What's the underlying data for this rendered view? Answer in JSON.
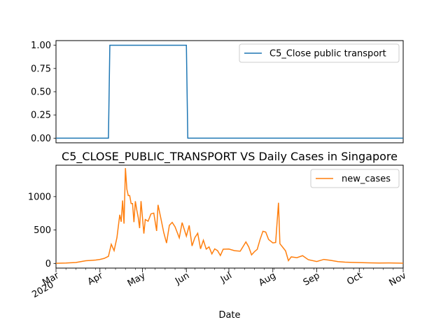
{
  "chart_data": [
    {
      "type": "line",
      "title": "",
      "xlabel": "",
      "ylabel": "",
      "ylim": [
        -0.05,
        1.05
      ],
      "yticks": [
        "0.00",
        "0.25",
        "0.50",
        "0.75",
        "1.00"
      ],
      "legend_position": "upper right",
      "series": [
        {
          "name": "C5_Close public transport",
          "color": "#1f77b4",
          "points": [
            [
              "2020-03-01",
              0
            ],
            [
              "2020-04-07",
              0
            ],
            [
              "2020-04-08",
              1
            ],
            [
              "2020-06-01",
              1
            ],
            [
              "2020-06-02",
              0
            ],
            [
              "2020-11-01",
              0
            ]
          ]
        }
      ]
    },
    {
      "type": "line",
      "title": "C5_CLOSE_PUBLIC_TRANSPORT VS Daily Cases in Singapore",
      "xlabel": "Date",
      "ylabel": "",
      "ylim": [
        -70,
        1470
      ],
      "yticks": [
        "0",
        "500",
        "1000"
      ],
      "xticks": [
        {
          "date": "2020-03-01",
          "label": "Mar",
          "sub": "2020"
        },
        {
          "date": "2020-04-01",
          "label": "Apr",
          "sub": ""
        },
        {
          "date": "2020-05-01",
          "label": "May",
          "sub": ""
        },
        {
          "date": "2020-06-01",
          "label": "Jun",
          "sub": ""
        },
        {
          "date": "2020-07-01",
          "label": "Jul",
          "sub": ""
        },
        {
          "date": "2020-08-01",
          "label": "Aug",
          "sub": ""
        },
        {
          "date": "2020-09-01",
          "label": "Sep",
          "sub": ""
        },
        {
          "date": "2020-10-01",
          "label": "Oct",
          "sub": ""
        },
        {
          "date": "2020-11-01",
          "label": "Nov",
          "sub": ""
        }
      ],
      "legend_position": "upper right",
      "series": [
        {
          "name": "new_cases",
          "color": "#ff7f0e",
          "points": [
            [
              "2020-03-01",
              2
            ],
            [
              "2020-03-08",
              6
            ],
            [
              "2020-03-15",
              14
            ],
            [
              "2020-03-22",
              40
            ],
            [
              "2020-03-29",
              50
            ],
            [
              "2020-04-01",
              60
            ],
            [
              "2020-04-04",
              75
            ],
            [
              "2020-04-07",
              106
            ],
            [
              "2020-04-09",
              287
            ],
            [
              "2020-04-11",
              191
            ],
            [
              "2020-04-13",
              386
            ],
            [
              "2020-04-15",
              728
            ],
            [
              "2020-04-16",
              623
            ],
            [
              "2020-04-17",
              942
            ],
            [
              "2020-04-18",
              596
            ],
            [
              "2020-04-19",
              1426
            ],
            [
              "2020-04-20",
              1111
            ],
            [
              "2020-04-21",
              1016
            ],
            [
              "2020-04-22",
              1016
            ],
            [
              "2020-04-23",
              897
            ],
            [
              "2020-04-24",
              897
            ],
            [
              "2020-04-25",
              618
            ],
            [
              "2020-04-26",
              931
            ],
            [
              "2020-04-27",
              799
            ],
            [
              "2020-04-28",
              690
            ],
            [
              "2020-04-29",
              528
            ],
            [
              "2020-04-30",
              932
            ],
            [
              "2020-05-02",
              447
            ],
            [
              "2020-05-03",
              657
            ],
            [
              "2020-05-05",
              632
            ],
            [
              "2020-05-07",
              741
            ],
            [
              "2020-05-09",
              753
            ],
            [
              "2020-05-11",
              486
            ],
            [
              "2020-05-12",
              876
            ],
            [
              "2020-05-14",
              675
            ],
            [
              "2020-05-16",
              465
            ],
            [
              "2020-05-18",
              305
            ],
            [
              "2020-05-20",
              570
            ],
            [
              "2020-05-22",
              614
            ],
            [
              "2020-05-24",
              548
            ],
            [
              "2020-05-27",
              383
            ],
            [
              "2020-05-29",
              611
            ],
            [
              "2020-06-01",
              408
            ],
            [
              "2020-06-03",
              569
            ],
            [
              "2020-06-05",
              261
            ],
            [
              "2020-06-07",
              386
            ],
            [
              "2020-06-09",
              451
            ],
            [
              "2020-06-11",
              218
            ],
            [
              "2020-06-13",
              347
            ],
            [
              "2020-06-15",
              214
            ],
            [
              "2020-06-17",
              247
            ],
            [
              "2020-06-19",
              142
            ],
            [
              "2020-06-21",
              218
            ],
            [
              "2020-06-23",
              191
            ],
            [
              "2020-06-25",
              119
            ],
            [
              "2020-06-27",
              213
            ],
            [
              "2020-07-01",
              215
            ],
            [
              "2020-07-05",
              191
            ],
            [
              "2020-07-09",
              183
            ],
            [
              "2020-07-13",
              322
            ],
            [
              "2020-07-15",
              247
            ],
            [
              "2020-07-17",
              128
            ],
            [
              "2020-07-19",
              175
            ],
            [
              "2020-07-21",
              211
            ],
            [
              "2020-07-23",
              359
            ],
            [
              "2020-07-25",
              481
            ],
            [
              "2020-07-27",
              469
            ],
            [
              "2020-07-29",
              359
            ],
            [
              "2020-08-01",
              307
            ],
            [
              "2020-08-03",
              313
            ],
            [
              "2020-08-05",
              908
            ],
            [
              "2020-08-06",
              295
            ],
            [
              "2020-08-08",
              242
            ],
            [
              "2020-08-10",
              188
            ],
            [
              "2020-08-12",
              42
            ],
            [
              "2020-08-14",
              98
            ],
            [
              "2020-08-18",
              86
            ],
            [
              "2020-08-22",
              116
            ],
            [
              "2020-08-26",
              56
            ],
            [
              "2020-09-01",
              28
            ],
            [
              "2020-09-06",
              60
            ],
            [
              "2020-09-11",
              45
            ],
            [
              "2020-09-16",
              27
            ],
            [
              "2020-09-21",
              19
            ],
            [
              "2020-09-26",
              15
            ],
            [
              "2020-10-01",
              12
            ],
            [
              "2020-10-08",
              8
            ],
            [
              "2020-10-15",
              6
            ],
            [
              "2020-10-22",
              7
            ],
            [
              "2020-10-29",
              5
            ],
            [
              "2020-11-01",
              4
            ]
          ]
        }
      ]
    }
  ]
}
